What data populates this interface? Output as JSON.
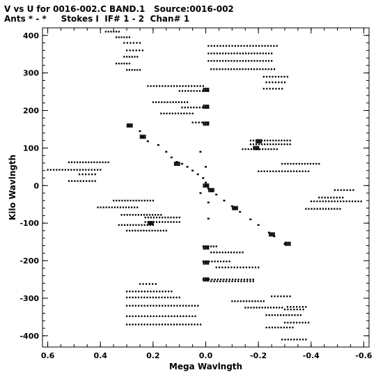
{
  "header": {
    "line1": "V vs U for 0016-002.C BAND.1   Source:0016-002",
    "line2": "Ants * - *     Stokes I  IF# 1 - 2  Chan# 1"
  },
  "chart_data": {
    "type": "scatter",
    "title": "V vs U for 0016-002.C BAND.1   Source:0016-002",
    "subtitle": "Ants * - *     Stokes I  IF# 1 - 2  Chan# 1",
    "xlabel": "Mega Wavlngth",
    "ylabel": "Kilo Wavlngth",
    "xlim": [
      0.62,
      -0.62
    ],
    "ylim": [
      -430,
      420
    ],
    "xticks": [
      0.6,
      0.4,
      0.2,
      0.0,
      -0.2,
      -0.4,
      -0.6
    ],
    "xtick_labels": [
      "0.6",
      "0.4",
      "0.2",
      "0.0",
      "-0.2",
      "-0.4",
      "-0.6"
    ],
    "yticks": [
      400,
      300,
      200,
      100,
      0,
      -100,
      -200,
      -300,
      -400
    ],
    "ytick_labels": [
      "400",
      "300",
      "200",
      "100",
      "0",
      "-100",
      "-200",
      "-300",
      "-400"
    ],
    "grid": false,
    "marker_color": "#000000",
    "tracks": [
      {
        "u0": 0.38,
        "u1": 0.33,
        "v": 410
      },
      {
        "u0": 0.34,
        "u1": 0.29,
        "v": 395
      },
      {
        "u0": 0.31,
        "u1": 0.25,
        "v": 380
      },
      {
        "u0": 0.3,
        "u1": 0.24,
        "v": 360
      },
      {
        "u0": 0.31,
        "u1": 0.26,
        "v": 343
      },
      {
        "u0": 0.34,
        "u1": 0.29,
        "v": 325
      },
      {
        "u0": 0.3,
        "u1": 0.25,
        "v": 308
      },
      {
        "u0": 0.22,
        "u1": 0.01,
        "v": 265
      },
      {
        "u0": 0.1,
        "u1": -0.01,
        "v": 252
      },
      {
        "u0": 0.2,
        "u1": 0.07,
        "v": 222
      },
      {
        "u0": 0.09,
        "u1": -0.01,
        "v": 208
      },
      {
        "u0": 0.17,
        "u1": 0.05,
        "v": 192
      },
      {
        "u0": 0.05,
        "u1": -0.01,
        "v": 168
      },
      {
        "u0": -0.01,
        "u1": -0.27,
        "v": 372
      },
      {
        "u0": -0.01,
        "u1": -0.25,
        "v": 352
      },
      {
        "u0": -0.01,
        "u1": -0.25,
        "v": 332
      },
      {
        "u0": -0.02,
        "u1": -0.26,
        "v": 310
      },
      {
        "u0": -0.22,
        "u1": -0.31,
        "v": 290
      },
      {
        "u0": -0.23,
        "u1": -0.3,
        "v": 275
      },
      {
        "u0": -0.22,
        "u1": -0.29,
        "v": 258
      },
      {
        "u0": -0.17,
        "u1": -0.32,
        "v": 120
      },
      {
        "u0": -0.17,
        "u1": -0.32,
        "v": 110
      },
      {
        "u0": -0.14,
        "u1": -0.27,
        "v": 97
      },
      {
        "u0": -0.29,
        "u1": -0.43,
        "v": 58
      },
      {
        "u0": -0.2,
        "u1": -0.39,
        "v": 38
      },
      {
        "u0": 0.52,
        "u1": 0.37,
        "v": 62
      },
      {
        "u0": 0.6,
        "u1": 0.4,
        "v": 42
      },
      {
        "u0": 0.48,
        "u1": 0.42,
        "v": 30
      },
      {
        "u0": 0.52,
        "u1": 0.42,
        "v": 12
      },
      {
        "u0": -0.49,
        "u1": -0.56,
        "v": -12
      },
      {
        "u0": -0.43,
        "u1": -0.52,
        "v": -32
      },
      {
        "u0": -0.4,
        "u1": -0.59,
        "v": -42
      },
      {
        "u0": -0.38,
        "u1": -0.51,
        "v": -62
      },
      {
        "u0": 0.35,
        "u1": 0.2,
        "v": -40
      },
      {
        "u0": 0.41,
        "u1": 0.26,
        "v": -58
      },
      {
        "u0": 0.32,
        "u1": 0.17,
        "v": -78
      },
      {
        "u0": 0.23,
        "u1": 0.1,
        "v": -85
      },
      {
        "u0": 0.23,
        "u1": 0.1,
        "v": -97
      },
      {
        "u0": 0.33,
        "u1": 0.2,
        "v": -105
      },
      {
        "u0": 0.3,
        "u1": 0.15,
        "v": -120
      },
      {
        "u0": 0.01,
        "u1": -0.04,
        "v": -162
      },
      {
        "u0": -0.02,
        "u1": -0.14,
        "v": -178
      },
      {
        "u0": 0.01,
        "u1": -0.09,
        "v": -202
      },
      {
        "u0": -0.04,
        "u1": -0.2,
        "v": -218
      },
      {
        "u0": 0.01,
        "u1": -0.18,
        "v": -250
      },
      {
        "u0": -0.02,
        "u1": -0.18,
        "v": -255
      },
      {
        "u0": 0.25,
        "u1": 0.19,
        "v": -262
      },
      {
        "u0": 0.3,
        "u1": 0.13,
        "v": -282
      },
      {
        "u0": 0.3,
        "u1": 0.1,
        "v": -298
      },
      {
        "u0": 0.3,
        "u1": 0.03,
        "v": -320
      },
      {
        "u0": 0.3,
        "u1": 0.04,
        "v": -348
      },
      {
        "u0": 0.3,
        "u1": 0.02,
        "v": -370
      },
      {
        "u0": -0.1,
        "u1": -0.22,
        "v": -308
      },
      {
        "u0": -0.25,
        "u1": -0.32,
        "v": -295
      },
      {
        "u0": -0.3,
        "u1": -0.37,
        "v": -330
      },
      {
        "u0": -0.31,
        "u1": -0.38,
        "v": -323
      },
      {
        "u0": -0.15,
        "u1": -0.29,
        "v": -325
      },
      {
        "u0": -0.23,
        "u1": -0.36,
        "v": -345
      },
      {
        "u0": -0.3,
        "u1": -0.39,
        "v": -365
      },
      {
        "u0": -0.23,
        "u1": -0.33,
        "v": -378
      },
      {
        "u0": -0.29,
        "u1": -0.38,
        "v": -410
      }
    ],
    "diagonal_points": [
      {
        "u": 0.29,
        "v": 160
      },
      {
        "u": 0.25,
        "v": 145
      },
      {
        "u": 0.24,
        "v": 130
      },
      {
        "u": 0.22,
        "v": 118
      },
      {
        "u": 0.18,
        "v": 108
      },
      {
        "u": 0.15,
        "v": 90
      },
      {
        "u": 0.13,
        "v": 75
      },
      {
        "u": 0.11,
        "v": 63
      },
      {
        "u": 0.09,
        "v": 58
      },
      {
        "u": 0.07,
        "v": 50
      },
      {
        "u": 0.05,
        "v": 40
      },
      {
        "u": 0.03,
        "v": 30
      },
      {
        "u": 0.01,
        "v": 20
      },
      {
        "u": 0.0,
        "v": 8
      },
      {
        "u": 0.0,
        "v": 0
      },
      {
        "u": -0.01,
        "v": -8
      },
      {
        "u": -0.02,
        "v": -15
      },
      {
        "u": -0.04,
        "v": -24
      },
      {
        "u": -0.07,
        "v": -40
      },
      {
        "u": -0.1,
        "v": -55
      },
      {
        "u": -0.11,
        "v": -60
      },
      {
        "u": -0.13,
        "v": -70
      },
      {
        "u": -0.17,
        "v": -90
      },
      {
        "u": -0.2,
        "v": -105
      },
      {
        "u": -0.24,
        "v": -125
      },
      {
        "u": -0.26,
        "v": -135
      },
      {
        "u": -0.3,
        "v": -155
      },
      {
        "u": 0.02,
        "v": 90
      },
      {
        "u": 0.0,
        "v": 50
      },
      {
        "u": 0.02,
        "v": -20
      },
      {
        "u": -0.01,
        "v": -45
      },
      {
        "u": -0.01,
        "v": -88
      }
    ],
    "clusters": [
      {
        "u": 0.29,
        "v": 160
      },
      {
        "u": 0.24,
        "v": 130
      },
      {
        "u": 0.11,
        "v": 58
      },
      {
        "u": 0.0,
        "v": 0
      },
      {
        "u": -0.02,
        "v": -12
      },
      {
        "u": -0.11,
        "v": -60
      },
      {
        "u": -0.25,
        "v": -130
      },
      {
        "u": -0.31,
        "v": -155
      },
      {
        "u": 0.21,
        "v": -100
      },
      {
        "u": 0.0,
        "v": -165
      },
      {
        "u": 0.0,
        "v": -205
      },
      {
        "u": 0.0,
        "v": -250
      },
      {
        "u": -0.2,
        "v": 118
      },
      {
        "u": -0.19,
        "v": 100
      },
      {
        "u": 0.0,
        "v": 165
      },
      {
        "u": 0.0,
        "v": 210
      },
      {
        "u": 0.0,
        "v": 255
      }
    ]
  }
}
